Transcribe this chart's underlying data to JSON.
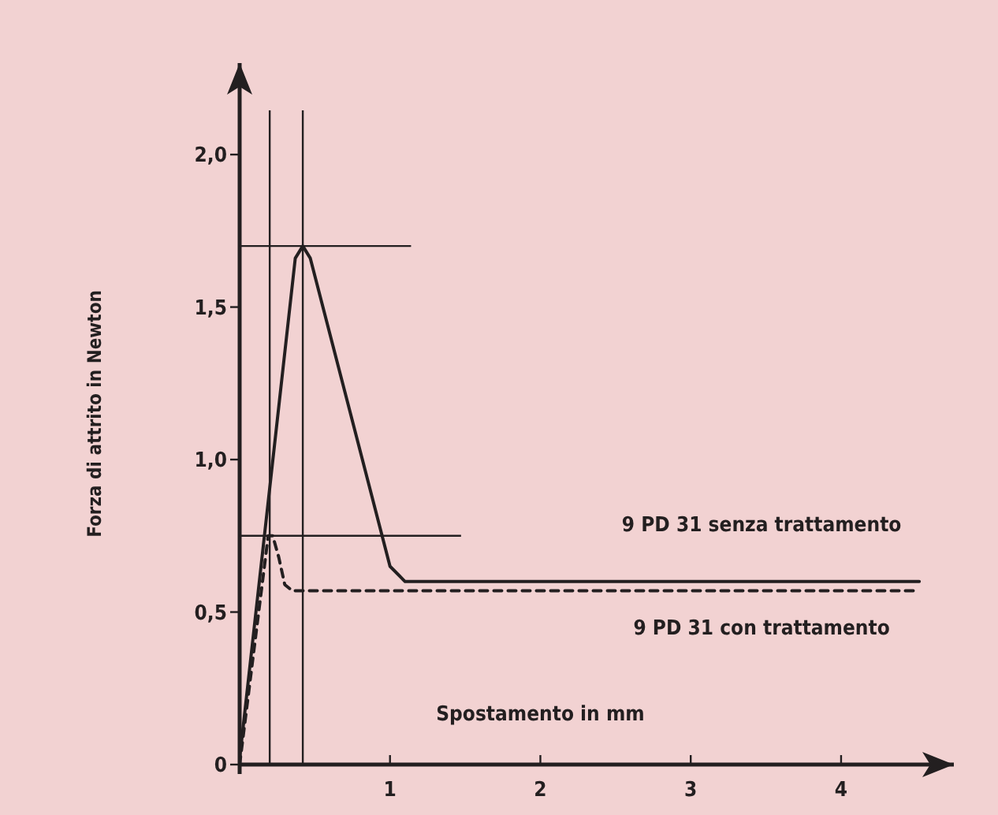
{
  "chart_data": {
    "type": "line",
    "xlabel": "Spostamento in mm",
    "ylabel": "Forza di attrito in Newton",
    "xlim": [
      0,
      4.75
    ],
    "ylim": [
      0,
      2.3
    ],
    "xticks": [
      1,
      2,
      3,
      4
    ],
    "yticks": [
      0,
      {
        "value": 0.5,
        "label": "0,5"
      },
      {
        "value": 1,
        "label": "1,0"
      },
      {
        "value": 1.5,
        "label": "1,5"
      },
      {
        "value": 2,
        "label": "2,0"
      }
    ],
    "legend": false,
    "marker": "none",
    "series": [
      {
        "name": "9 PD 31 senza trattamento",
        "color": "#231f20",
        "line_style": "solid",
        "x": [
          0,
          0.37,
          0.42,
          0.47,
          1.0,
          1.1,
          4.52
        ],
        "values": [
          0.02,
          1.66,
          1.7,
          1.66,
          0.65,
          0.6,
          0.6
        ]
      },
      {
        "name": "9 PD 31 con trattamento",
        "color": "#231f20",
        "line_style": "dashed",
        "x": [
          0,
          0.19,
          0.22,
          0.26,
          0.3,
          0.35,
          4.52
        ],
        "values": [
          0,
          0.75,
          0.75,
          0.68,
          0.59,
          0.57,
          0.57
        ]
      }
    ],
    "ref_lines": [
      {
        "axis": "x",
        "value": 0.42,
        "color": "#231f20"
      },
      {
        "axis": "x",
        "value": 0.2,
        "color": "#231f20"
      },
      {
        "axis": "y",
        "value": 1.7,
        "color": "#231f20"
      },
      {
        "axis": "y",
        "value": 0.75,
        "color": "#231f20"
      }
    ]
  }
}
